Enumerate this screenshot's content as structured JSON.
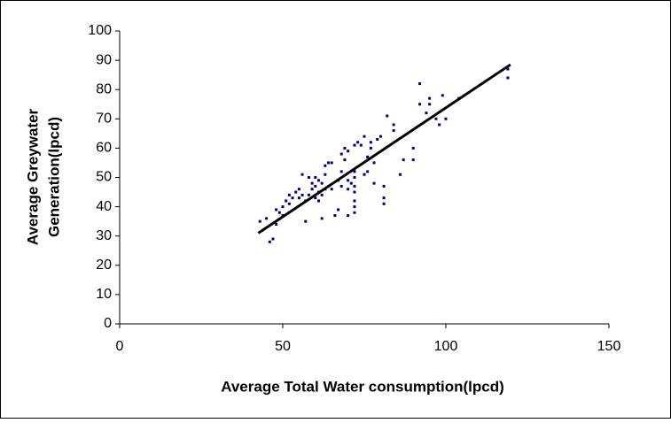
{
  "chart_data": {
    "type": "scatter",
    "xlabel": "Average Total Water consumption(lpcd)",
    "ylabel": [
      "Average Greywater",
      "Generation(lpcd)"
    ],
    "x": [
      43,
      45,
      46,
      47,
      48,
      48,
      49,
      50,
      50,
      51,
      52,
      52,
      53,
      54,
      55,
      55,
      56,
      56,
      57,
      57,
      58,
      58,
      59,
      59,
      60,
      60,
      60,
      61,
      61,
      61,
      62,
      62,
      62,
      63,
      63,
      63,
      64,
      65,
      65,
      66,
      67,
      67,
      68,
      68,
      68,
      69,
      69,
      70,
      70,
      70,
      70,
      71,
      72,
      72,
      72,
      72,
      72,
      72,
      72,
      72,
      73,
      74,
      75,
      75,
      76,
      76,
      77,
      77,
      78,
      78,
      79,
      80,
      81,
      81,
      81,
      82,
      84,
      84,
      86,
      87,
      90,
      90,
      92,
      92,
      94,
      95,
      95,
      97,
      98,
      99,
      100,
      104,
      119,
      119
    ],
    "values": [
      35,
      36,
      28,
      29,
      34,
      39,
      38,
      37,
      40,
      42,
      41,
      44,
      43,
      45,
      46,
      43,
      44,
      51,
      35,
      42,
      50,
      44,
      46,
      48,
      43,
      47,
      50,
      45,
      49,
      42,
      44,
      48,
      36,
      46,
      51,
      54,
      55,
      55,
      46,
      37,
      49,
      39,
      47,
      52,
      58,
      60,
      56,
      59,
      49,
      46,
      37,
      48,
      61,
      52,
      50,
      47,
      45,
      42,
      40,
      38,
      62,
      61,
      64,
      51,
      52,
      57,
      62,
      60,
      55,
      48,
      63,
      64,
      47,
      43,
      41,
      71,
      68,
      66,
      51,
      56,
      60,
      56,
      75,
      82,
      72,
      75,
      77,
      70,
      68,
      78,
      70,
      77,
      87,
      84
    ],
    "color": "#000080",
    "trendline": {
      "x": [
        42.5,
        119.8
      ],
      "values": [
        31,
        88.5
      ],
      "color": "#000000"
    },
    "xlim": [
      0,
      150
    ],
    "xticks": [
      0,
      50,
      100,
      150
    ],
    "ylim": [
      0,
      100
    ],
    "yticks": [
      0,
      10,
      20,
      30,
      40,
      50,
      60,
      70,
      80,
      90,
      100
    ]
  }
}
